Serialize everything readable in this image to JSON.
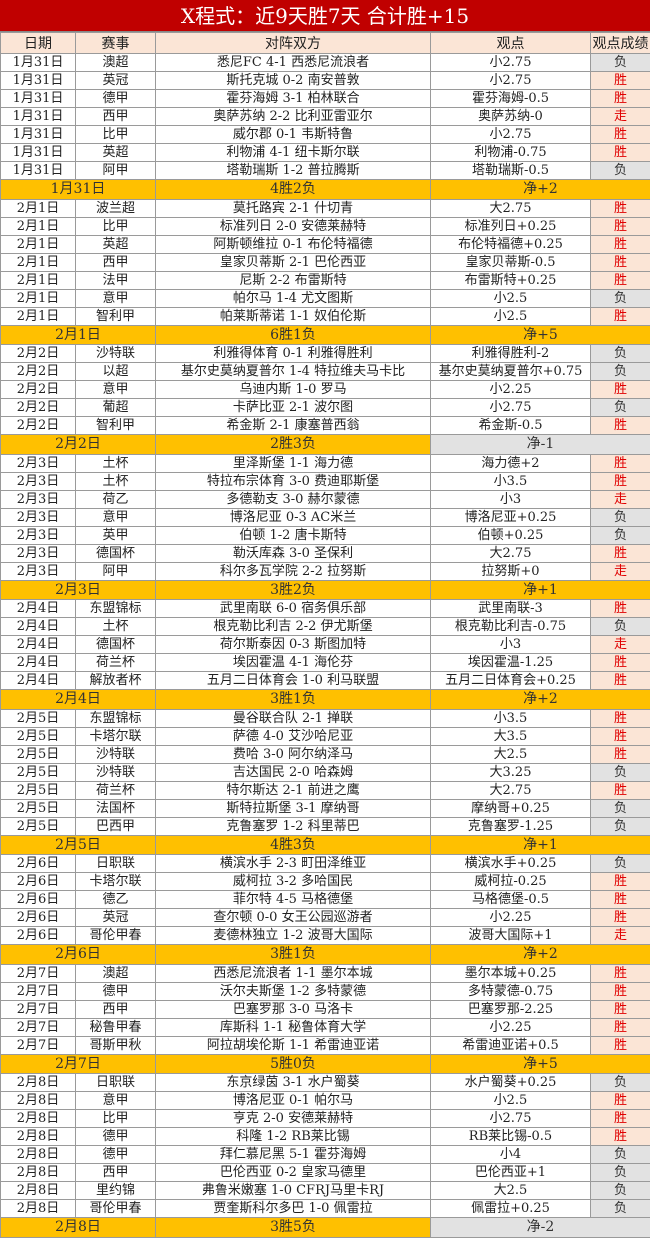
{
  "title": "X程式：近9天胜7天 合计胜+15",
  "headers": [
    "日期",
    "赛事",
    "对阵双方",
    "观点",
    "观点成绩"
  ],
  "colors": {
    "title_bg": "#c00000",
    "summary_bg": "#ffc000",
    "win_bg": "#fbe5d6",
    "win_text": "#e00000",
    "loss_bg": "#e2e2e2"
  },
  "groups": [
    {
      "matches": [
        [
          "1月31日",
          "澳超",
          "悉尼FC 4-1 西悉尼流浪者",
          "小2.75",
          "负"
        ],
        [
          "1月31日",
          "英冠",
          "斯托克城 0-2 南安普敦",
          "小2.75",
          "胜"
        ],
        [
          "1月31日",
          "德甲",
          "霍芬海姆 3-1 柏林联合",
          "霍芬海姆-0.5",
          "胜"
        ],
        [
          "1月31日",
          "西甲",
          "奥萨苏纳 2-2 比利亚雷亚尔",
          "奥萨苏纳-0",
          "走"
        ],
        [
          "1月31日",
          "比甲",
          "威尔郡 0-1 韦斯特鲁",
          "小2.75",
          "胜"
        ],
        [
          "1月31日",
          "英超",
          "利物浦 4-1 纽卡斯尔联",
          "利物浦-0.75",
          "胜"
        ],
        [
          "1月31日",
          "阿甲",
          "塔勒瑞斯 1-2 普拉腾斯",
          "塔勒瑞斯-0.5",
          "负"
        ]
      ],
      "summary": [
        "1月31日",
        "4胜2负",
        "净+2"
      ]
    },
    {
      "matches": [
        [
          "2月1日",
          "波兰超",
          "莫托路宾 2-1 什切青",
          "大2.75",
          "胜"
        ],
        [
          "2月1日",
          "比甲",
          "标准列日 2-0 安德莱赫特",
          "标准列日+0.25",
          "胜"
        ],
        [
          "2月1日",
          "英超",
          "阿斯顿维拉 0-1 布伦特福德",
          "布伦特福德+0.25",
          "胜"
        ],
        [
          "2月1日",
          "西甲",
          "皇家贝蒂斯 2-1 巴伦西亚",
          "皇家贝蒂斯-0.5",
          "胜"
        ],
        [
          "2月1日",
          "法甲",
          "尼斯 2-2 布雷斯特",
          "布雷斯特+0.25",
          "胜"
        ],
        [
          "2月1日",
          "意甲",
          "帕尔马 1-4 尤文图斯",
          "小2.5",
          "负"
        ],
        [
          "2月1日",
          "智利甲",
          "帕莱斯蒂诺 1-1 奴伯伦斯",
          "小2.5",
          "胜"
        ]
      ],
      "summary": [
        "2月1日",
        "6胜1负",
        "净+5"
      ]
    },
    {
      "matches": [
        [
          "2月2日",
          "沙特联",
          "利雅得体育 0-1 利雅得胜利",
          "利雅得胜利-2",
          "负"
        ],
        [
          "2月2日",
          "以超",
          "基尔史莫纳夏普尔 1-4 特拉维夫马卡比",
          "基尔史莫纳夏普尔+0.75",
          "负"
        ],
        [
          "2月2日",
          "意甲",
          "乌迪内斯 1-0 罗马",
          "小2.25",
          "胜"
        ],
        [
          "2月2日",
          "葡超",
          "卡萨比亚 2-1 波尔图",
          "小2.75",
          "负"
        ],
        [
          "2月2日",
          "智利甲",
          "希金斯 2-1 康塞普西翁",
          "希金斯-0.5",
          "胜"
        ]
      ],
      "summary": [
        "2月2日",
        "2胜3负",
        "净-1"
      ]
    },
    {
      "matches": [
        [
          "2月3日",
          "土杯",
          "里泽斯堡 1-1 海力德",
          "海力德+2",
          "胜"
        ],
        [
          "2月3日",
          "土杯",
          "特拉布宗体育 3-0 费迪耶斯堡",
          "小3.5",
          "胜"
        ],
        [
          "2月3日",
          "荷乙",
          "多德勒支 3-0 赫尔蒙德",
          "小3",
          "走"
        ],
        [
          "2月3日",
          "意甲",
          "博洛尼亚 0-3 AC米兰",
          "博洛尼亚+0.25",
          "负"
        ],
        [
          "2月3日",
          "英甲",
          "伯顿 1-2 唐卡斯特",
          "伯顿+0.25",
          "负"
        ],
        [
          "2月3日",
          "德国杯",
          "勒沃库森 3-0 圣保利",
          "大2.75",
          "胜"
        ],
        [
          "2月3日",
          "阿甲",
          "科尔多瓦学院 2-2 拉努斯",
          "拉努斯+0",
          "走"
        ]
      ],
      "summary": [
        "2月3日",
        "3胜2负",
        "净+1"
      ]
    },
    {
      "matches": [
        [
          "2月4日",
          "东盟锦标",
          "武里南联 6-0 宿务俱乐部",
          "武里南联-3",
          "胜"
        ],
        [
          "2月4日",
          "土杯",
          "根克勒比利吉 2-2 伊尤斯堡",
          "根克勒比利吉-0.75",
          "负"
        ],
        [
          "2月4日",
          "德国杯",
          "荷尔斯泰因 0-3 斯图加特",
          "小3",
          "走"
        ],
        [
          "2月4日",
          "荷兰杯",
          "埃因霍温 4-1 海伦芬",
          "埃因霍温-1.25",
          "胜"
        ],
        [
          "2月4日",
          "解放者杯",
          "五月二日体育会 1-0 利马联盟",
          "五月二日体育会+0.25",
          "胜"
        ]
      ],
      "summary": [
        "2月4日",
        "3胜1负",
        "净+2"
      ]
    },
    {
      "matches": [
        [
          "2月5日",
          "东盟锦标",
          "曼谷联合队 2-1 掸联",
          "小3.5",
          "胜"
        ],
        [
          "2月5日",
          "卡塔尔联",
          "萨德 4-0 艾沙哈尼亚",
          "大3.5",
          "胜"
        ],
        [
          "2月5日",
          "沙特联",
          "费哈 3-0 阿尔纳泽马",
          "大2.5",
          "胜"
        ],
        [
          "2月5日",
          "沙特联",
          "吉达国民 2-0 哈森姆",
          "大3.25",
          "负"
        ],
        [
          "2月5日",
          "荷兰杯",
          "特尔斯达 2-1 前进之鹰",
          "大2.75",
          "胜"
        ],
        [
          "2月5日",
          "法国杯",
          "斯特拉斯堡 3-1 摩纳哥",
          "摩纳哥+0.25",
          "负"
        ],
        [
          "2月5日",
          "巴西甲",
          "克鲁塞罗 1-2 科里蒂巴",
          "克鲁塞罗-1.25",
          "负"
        ]
      ],
      "summary": [
        "2月5日",
        "4胜3负",
        "净+1"
      ]
    },
    {
      "matches": [
        [
          "2月6日",
          "日职联",
          "横滨水手 2-3 町田泽维亚",
          "横滨水手+0.25",
          "负"
        ],
        [
          "2月6日",
          "卡塔尔联",
          "威柯拉 3-2 多哈国民",
          "威柯拉-0.25",
          "胜"
        ],
        [
          "2月6日",
          "德乙",
          "菲尔特 4-5 马格德堡",
          "马格德堡-0.5",
          "胜"
        ],
        [
          "2月6日",
          "英冠",
          "查尔顿 0-0 女王公园巡游者",
          "小2.25",
          "胜"
        ],
        [
          "2月6日",
          "哥伦甲春",
          "麦德林独立 1-2 波哥大国际",
          "波哥大国际+1",
          "走"
        ]
      ],
      "summary": [
        "2月6日",
        "3胜1负",
        "净+2"
      ]
    },
    {
      "matches": [
        [
          "2月7日",
          "澳超",
          "西悉尼流浪者 1-1 墨尔本城",
          "墨尔本城+0.25",
          "胜"
        ],
        [
          "2月7日",
          "德甲",
          "沃尔夫斯堡 1-2 多特蒙德",
          "多特蒙德-0.75",
          "胜"
        ],
        [
          "2月7日",
          "西甲",
          "巴塞罗那 3-0 马洛卡",
          "巴塞罗那-2.25",
          "胜"
        ],
        [
          "2月7日",
          "秘鲁甲春",
          "库斯科 1-1 秘鲁体育大学",
          "小2.25",
          "胜"
        ],
        [
          "2月7日",
          "哥斯甲秋",
          "阿拉胡埃伦斯 1-1 希雷迪亚诺",
          "希雷迪亚诺+0.5",
          "胜"
        ]
      ],
      "summary": [
        "2月7日",
        "5胜0负",
        "净+5"
      ]
    },
    {
      "matches": [
        [
          "2月8日",
          "日职联",
          "东京绿茵 3-1 水户蜀葵",
          "水户蜀葵+0.25",
          "负"
        ],
        [
          "2月8日",
          "意甲",
          "博洛尼亚 0-1 帕尔马",
          "小2.5",
          "胜"
        ],
        [
          "2月8日",
          "比甲",
          "亨克 2-0 安德莱赫特",
          "小2.75",
          "胜"
        ],
        [
          "2月8日",
          "德甲",
          "科隆 1-2 RB莱比锡",
          "RB莱比锡-0.5",
          "胜"
        ],
        [
          "2月8日",
          "德甲",
          "拜仁慕尼黑 5-1 霍芬海姆",
          "小4",
          "负"
        ],
        [
          "2月8日",
          "西甲",
          "巴伦西亚 0-2 皇家马德里",
          "巴伦西亚+1",
          "负"
        ],
        [
          "2月8日",
          "里约锦",
          "弗鲁米嫩塞 1-0 CFRJ马里卡RJ",
          "大2.5",
          "负"
        ],
        [
          "2月8日",
          "哥伦甲春",
          "贾奎斯科尔多巴 1-0 佩雷拉",
          "佩雷拉+0.25",
          "负"
        ]
      ],
      "summary": [
        "2月8日",
        "3胜5负",
        "净-2"
      ]
    }
  ]
}
